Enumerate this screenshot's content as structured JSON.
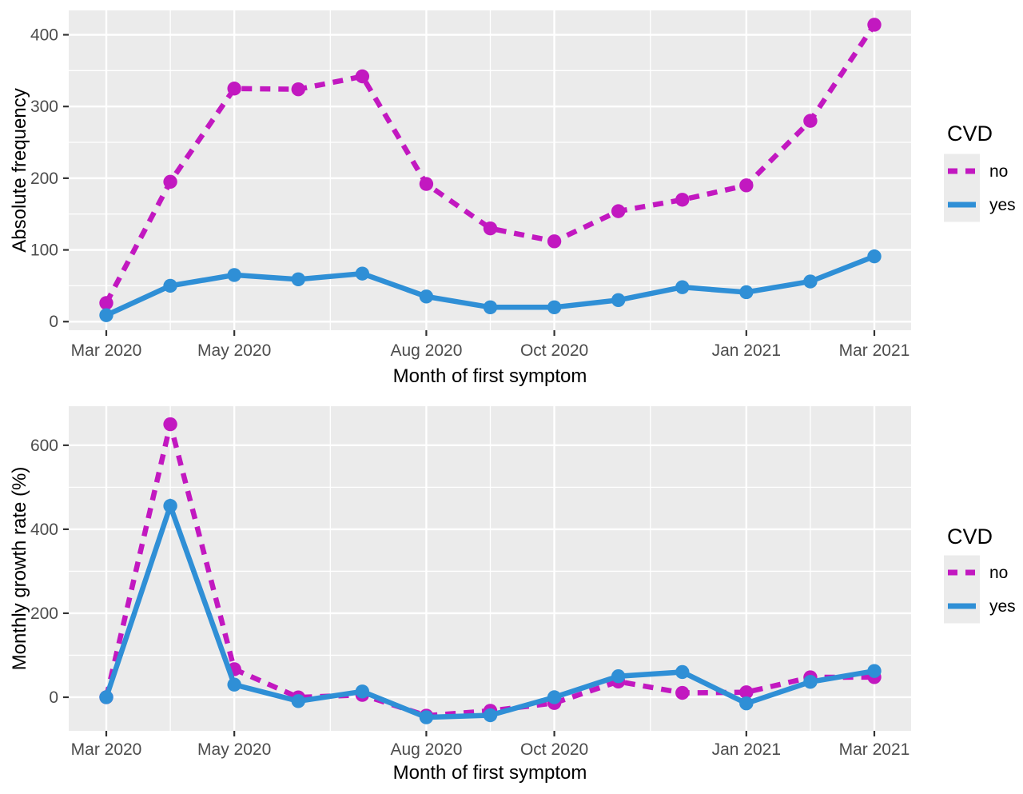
{
  "page": {
    "background": "#ffffff"
  },
  "colors": {
    "panel_background": "#ebebeb",
    "gridline": "#ffffff",
    "axis_text": "#4d4d4d",
    "axis_title": "#000000",
    "tick_mark": "#333333",
    "series_no": "#c218c0",
    "series_yes": "#2f8fd6",
    "legend_key_background": "#ebebeb"
  },
  "chart_data": [
    {
      "type": "line",
      "title": "",
      "xlabel": "Month of first symptom",
      "ylabel": "Absolute frequency",
      "x": [
        "Mar 2020",
        "Apr 2020",
        "May 2020",
        "Jun 2020",
        "Jul 2020",
        "Aug 2020",
        "Sep 2020",
        "Oct 2020",
        "Nov 2020",
        "Dec 2020",
        "Jan 2021",
        "Feb 2021",
        "Mar 2021"
      ],
      "x_tick_labels": [
        "Mar 2020",
        "May 2020",
        "Aug 2020",
        "Oct 2020",
        "Jan 2021",
        "Mar 2021"
      ],
      "x_tick_indices": [
        0,
        2,
        5,
        7,
        10,
        12
      ],
      "yticks": [
        0,
        100,
        200,
        300,
        400
      ],
      "ylim": [
        -12,
        434
      ],
      "grid": true,
      "legend_title": "CVD",
      "legend_position": "right",
      "series": [
        {
          "name": "no",
          "color": "#c218c0",
          "dash": true,
          "values": [
            26,
            195,
            325,
            324,
            342,
            192,
            130,
            112,
            154,
            170,
            190,
            280,
            414
          ]
        },
        {
          "name": "yes",
          "color": "#2f8fd6",
          "dash": false,
          "values": [
            9,
            50,
            65,
            59,
            67,
            35,
            20,
            20,
            30,
            48,
            41,
            56,
            91
          ]
        }
      ]
    },
    {
      "type": "line",
      "title": "",
      "xlabel": "Month of first symptom",
      "ylabel": "Monthly growth rate (%)",
      "x": [
        "Mar 2020",
        "Apr 2020",
        "May 2020",
        "Jun 2020",
        "Jul 2020",
        "Aug 2020",
        "Sep 2020",
        "Oct 2020",
        "Nov 2020",
        "Dec 2020",
        "Jan 2021",
        "Feb 2021",
        "Mar 2021"
      ],
      "x_tick_labels": [
        "Mar 2020",
        "May 2020",
        "Aug 2020",
        "Oct 2020",
        "Jan 2021",
        "Mar 2021"
      ],
      "x_tick_indices": [
        0,
        2,
        5,
        7,
        10,
        12
      ],
      "yticks": [
        0,
        200,
        400,
        600
      ],
      "ylim": [
        -80,
        693
      ],
      "grid": true,
      "legend_title": "CVD",
      "legend_position": "right",
      "series": [
        {
          "name": "no",
          "color": "#c218c0",
          "dash": true,
          "values": [
            0,
            650,
            66.7,
            -0.3,
            5.6,
            -43.9,
            -32.3,
            -13.8,
            37.5,
            10.4,
            11.8,
            47.4,
            47.9
          ]
        },
        {
          "name": "yes",
          "color": "#2f8fd6",
          "dash": false,
          "values": [
            0,
            455.6,
            30,
            -9.2,
            13.6,
            -47.8,
            -42.9,
            0,
            50,
            60,
            -14.6,
            36.6,
            62.5
          ]
        }
      ]
    }
  ]
}
